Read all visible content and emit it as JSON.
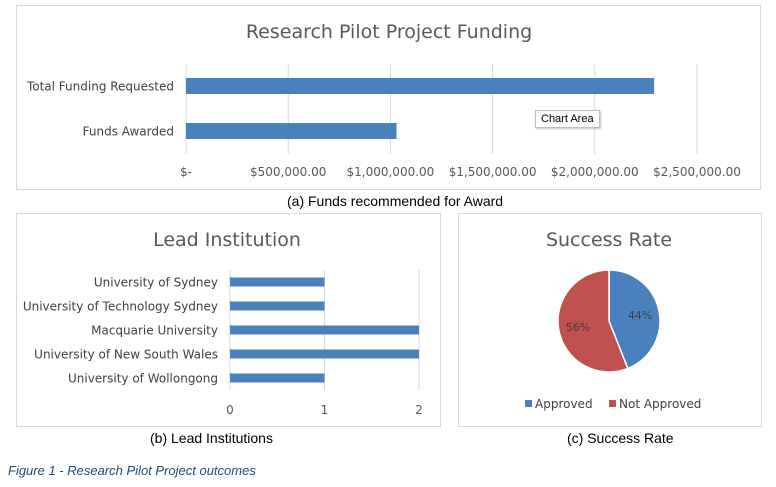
{
  "chart_data": [
    {
      "type": "bar",
      "orientation": "horizontal",
      "title": "Research Pilot Project Funding",
      "categories": [
        "Total Funding Requested",
        "Funds Awarded"
      ],
      "values": [
        2290000,
        1030000
      ],
      "xlim": [
        0,
        2500000
      ],
      "xticks": [
        0,
        500000,
        1000000,
        1500000,
        2000000,
        2500000
      ],
      "xtick_labels": [
        "$-",
        "$500,000.00",
        "$1,000,000.00",
        "$1,500,000.00",
        "$2,000,000.00",
        "$2,500,000.00"
      ],
      "grid": true,
      "color": "#4a81bd"
    },
    {
      "type": "bar",
      "orientation": "horizontal",
      "title": "Lead Institution",
      "categories": [
        "University of Sydney",
        "University of Technology Sydney",
        "Macquarie University",
        "University of New South Wales",
        "University of Wollongong"
      ],
      "values": [
        1,
        1,
        2,
        2,
        1
      ],
      "xlim": [
        0,
        2
      ],
      "xticks": [
        0,
        1,
        2
      ],
      "xtick_labels": [
        "0",
        "1",
        "2"
      ],
      "grid": true,
      "color": "#4a81bd"
    },
    {
      "type": "pie",
      "title": "Success Rate",
      "labels": [
        "Approved",
        "Not Approved"
      ],
      "values": [
        44,
        56
      ],
      "value_labels": [
        "44%",
        "56%"
      ],
      "colors": [
        "#4a81bd",
        "#c0504d"
      ],
      "legend": "bottom"
    }
  ],
  "captions": {
    "a": "(a)  Funds recommended for Award",
    "b": "(b)  Lead Institutions",
    "c": "(c)  Success Rate",
    "figure": "Figure 1 - Research Pilot Project outcomes"
  },
  "tooltip": "Chart Area"
}
